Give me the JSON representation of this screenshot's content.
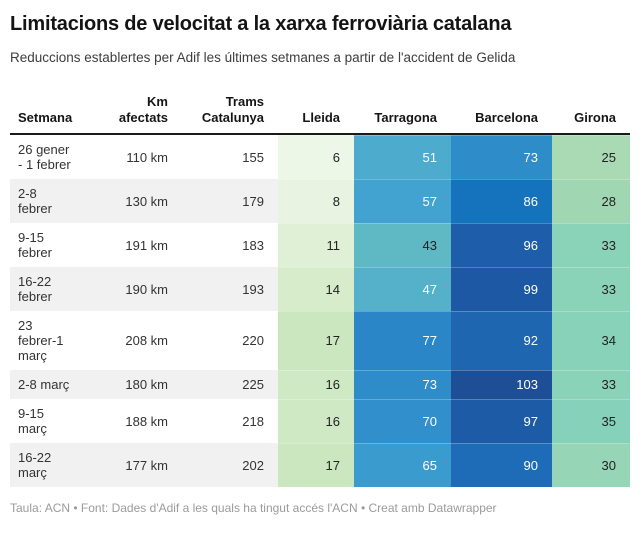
{
  "header": {
    "title": "Limitacions de velocitat a la xarxa ferroviària catalana",
    "subtitle": "Reduccions establertes per Adif les últimes setmanes a partir de l'accident de Gelida"
  },
  "footer": {
    "text": "Taula: ACN • Font: Dades d'Adif a les quals ha tingut accés l'ACN • Creat amb Datawrapper"
  },
  "table": {
    "columns": [
      {
        "key": "week",
        "label": "Setmana",
        "align": "left"
      },
      {
        "key": "km",
        "label": "Km afectats",
        "align": "right"
      },
      {
        "key": "trams",
        "label": "Trams Catalunya",
        "align": "right"
      },
      {
        "key": "lleida",
        "label": "Lleida",
        "align": "right"
      },
      {
        "key": "tarragona",
        "label": "Tarragona",
        "align": "right"
      },
      {
        "key": "barcelona",
        "label": "Barcelona",
        "align": "right"
      },
      {
        "key": "girona",
        "label": "Girona",
        "align": "right"
      }
    ],
    "rows": [
      {
        "week": "26 gener\n- 1 febrer",
        "km": "110 km",
        "trams": "155",
        "heat": [
          {
            "v": "6",
            "bg": "#edf7e7",
            "fg": "#222222"
          },
          {
            "v": "51",
            "bg": "#4daccd",
            "fg": "#ffffff"
          },
          {
            "v": "73",
            "bg": "#2e8cc9",
            "fg": "#ffffff"
          },
          {
            "v": "25",
            "bg": "#a9dab3",
            "fg": "#222222"
          }
        ]
      },
      {
        "week": "2-8\nfebrer",
        "km": "130 km",
        "trams": "179",
        "heat": [
          {
            "v": "8",
            "bg": "#e8f4e1",
            "fg": "#222222"
          },
          {
            "v": "57",
            "bg": "#43a3d0",
            "fg": "#ffffff"
          },
          {
            "v": "86",
            "bg": "#1573bd",
            "fg": "#ffffff"
          },
          {
            "v": "28",
            "bg": "#a0d7b2",
            "fg": "#222222"
          }
        ]
      },
      {
        "week": "9-15\nfebrer",
        "km": "191 km",
        "trams": "183",
        "heat": [
          {
            "v": "11",
            "bg": "#dff0d6",
            "fg": "#222222"
          },
          {
            "v": "43",
            "bg": "#5fb9c4",
            "fg": "#222222"
          },
          {
            "v": "96",
            "bg": "#1e5da9",
            "fg": "#ffffff"
          },
          {
            "v": "33",
            "bg": "#8bd3b8",
            "fg": "#222222"
          }
        ]
      },
      {
        "week": "16-22\nfebrer",
        "km": "190 km",
        "trams": "193",
        "heat": [
          {
            "v": "14",
            "bg": "#d6eccb",
            "fg": "#222222"
          },
          {
            "v": "47",
            "bg": "#55b1ca",
            "fg": "#ffffff"
          },
          {
            "v": "99",
            "bg": "#1d58a4",
            "fg": "#ffffff"
          },
          {
            "v": "33",
            "bg": "#8bd3b8",
            "fg": "#222222"
          }
        ]
      },
      {
        "week": "23\nfebrer-1\nmarç",
        "km": "208 km",
        "trams": "220",
        "heat": [
          {
            "v": "17",
            "bg": "#cbe7bf",
            "fg": "#222222"
          },
          {
            "v": "77",
            "bg": "#2a86c6",
            "fg": "#ffffff"
          },
          {
            "v": "92",
            "bg": "#1f66b0",
            "fg": "#ffffff"
          },
          {
            "v": "34",
            "bg": "#88d2b9",
            "fg": "#222222"
          }
        ]
      },
      {
        "week": "2-8 març",
        "km": "180 km",
        "trams": "225",
        "heat": [
          {
            "v": "16",
            "bg": "#d0e9c5",
            "fg": "#222222"
          },
          {
            "v": "73",
            "bg": "#2e8cc9",
            "fg": "#ffffff"
          },
          {
            "v": "103",
            "bg": "#1e4f96",
            "fg": "#ffffff"
          },
          {
            "v": "33",
            "bg": "#8bd3b8",
            "fg": "#222222"
          }
        ]
      },
      {
        "week": "9-15\nmarç",
        "km": "188 km",
        "trams": "218",
        "heat": [
          {
            "v": "16",
            "bg": "#d0e9c5",
            "fg": "#222222"
          },
          {
            "v": "70",
            "bg": "#3190cb",
            "fg": "#ffffff"
          },
          {
            "v": "97",
            "bg": "#1e5ba7",
            "fg": "#ffffff"
          },
          {
            "v": "35",
            "bg": "#85d1ba",
            "fg": "#222222"
          }
        ]
      },
      {
        "week": "16-22\nmarç",
        "km": "177 km",
        "trams": "202",
        "heat": [
          {
            "v": "17",
            "bg": "#cbe7bf",
            "fg": "#222222"
          },
          {
            "v": "65",
            "bg": "#3a9bce",
            "fg": "#ffffff"
          },
          {
            "v": "90",
            "bg": "#1e6cb7",
            "fg": "#ffffff"
          },
          {
            "v": "30",
            "bg": "#96d5b5",
            "fg": "#222222"
          }
        ]
      }
    ]
  },
  "chart_data": {
    "type": "table",
    "title": "Limitacions de velocitat a la xarxa ferroviària catalana",
    "subtitle": "Reduccions establertes per Adif les últimes setmanes a partir de l'accident de Gelida",
    "columns": [
      "Setmana",
      "Km afectats",
      "Trams Catalunya",
      "Lleida",
      "Tarragona",
      "Barcelona",
      "Girona"
    ],
    "rows": [
      [
        "26 gener - 1 febrer",
        "110 km",
        155,
        6,
        51,
        73,
        25
      ],
      [
        "2-8 febrer",
        "130 km",
        179,
        8,
        57,
        86,
        28
      ],
      [
        "9-15 febrer",
        "191 km",
        183,
        11,
        43,
        96,
        33
      ],
      [
        "16-22 febrer",
        "190 km",
        193,
        14,
        47,
        99,
        33
      ],
      [
        "23 febrer-1 març",
        "208 km",
        220,
        17,
        77,
        92,
        34
      ],
      [
        "2-8 març",
        "180 km",
        225,
        16,
        73,
        103,
        33
      ],
      [
        "9-15 març",
        "188 km",
        218,
        16,
        70,
        97,
        35
      ],
      [
        "16-22 març",
        "177 km",
        202,
        17,
        65,
        90,
        30
      ]
    ],
    "heatmap": {
      "columns": [
        "Lleida",
        "Tarragona",
        "Barcelona",
        "Girona"
      ],
      "scale": "light-green to dark-blue",
      "domain": [
        6,
        103
      ],
      "color_low": "#edf7e7",
      "color_mid": "#4daccd",
      "color_high": "#1e4f96"
    },
    "legend_position": "none",
    "grid": false
  }
}
